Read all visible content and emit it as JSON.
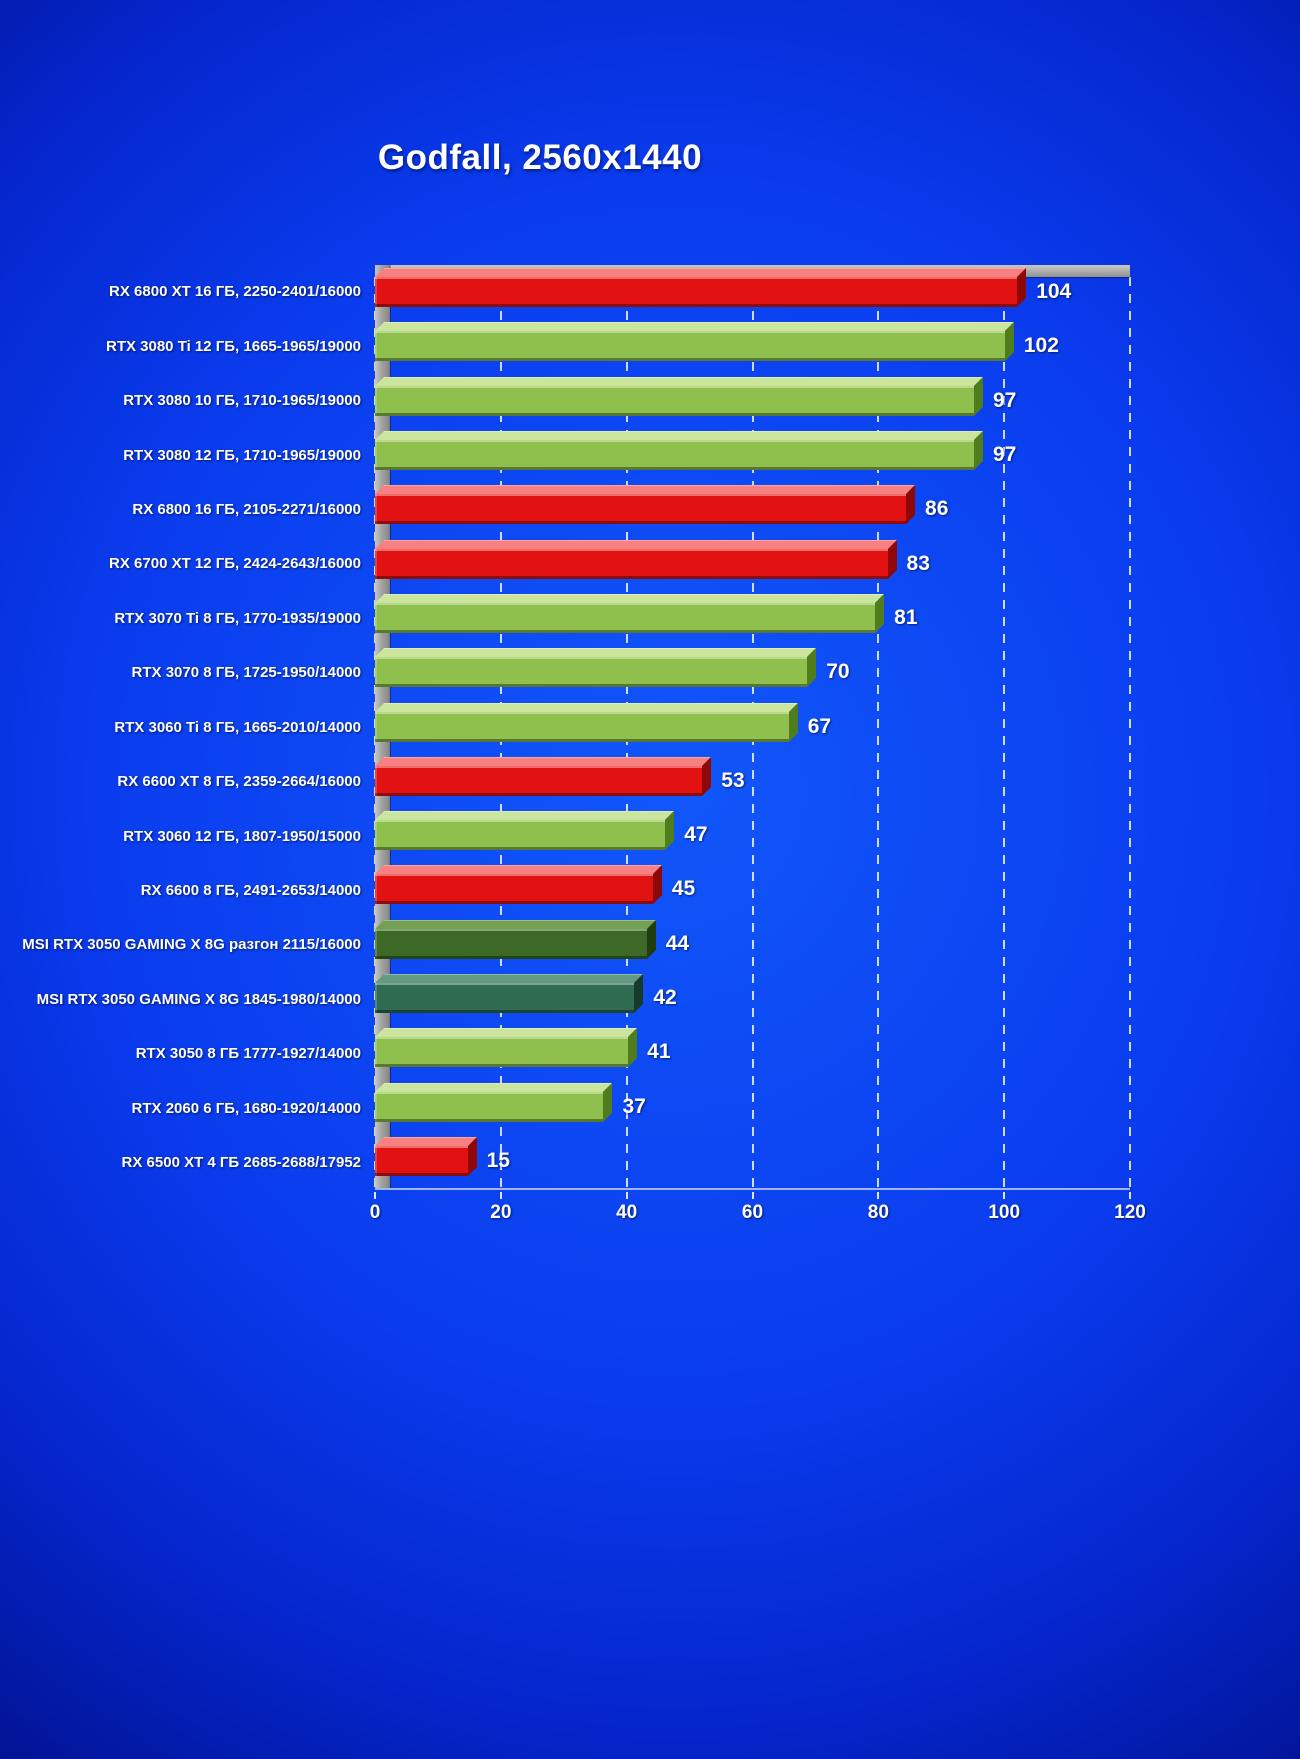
{
  "title": "Godfall, 2560x1440",
  "chart_data": {
    "type": "bar",
    "orientation": "horizontal",
    "title": "Godfall, 2560x1440",
    "xlabel": "",
    "ylabel": "",
    "xlim": [
      0,
      120
    ],
    "x_ticks": [
      0,
      20,
      40,
      60,
      80,
      100,
      120
    ],
    "grid": "vertical dashed white lines",
    "legend": "none",
    "value_labels_shown": true,
    "categories": [
      "RX 6800 XT 16 ГБ, 2250-2401/16000",
      "RTX 3080 Ti 12 ГБ, 1665-1965/19000",
      "RTX 3080 10 ГБ, 1710-1965/19000",
      "RTX 3080 12 ГБ, 1710-1965/19000",
      "RX 6800 16 ГБ, 2105-2271/16000",
      "RX 6700 XT 12 ГБ, 2424-2643/16000",
      "RTX 3070 Ti 8 ГБ, 1770-1935/19000",
      "RTX 3070 8 ГБ, 1725-1950/14000",
      "RTX 3060 Ti 8 ГБ, 1665-2010/14000",
      "RX 6600 XT 8 ГБ, 2359-2664/16000",
      "RTX 3060 12 ГБ, 1807-1950/15000",
      "RX 6600 8 ГБ, 2491-2653/14000",
      "MSI  RTX 3050 GAMING  X 8G разгон 2115/16000",
      "MSI  RTX 3050 GAMING X 8G 1845-1980/14000",
      "RTX 3050 8 ГБ 1777-1927/14000",
      "RTX 2060 6 ГБ, 1680-1920/14000",
      "RX 6500 XT 4 ГБ 2685-2688/17952"
    ],
    "values": [
      104,
      102,
      97,
      97,
      86,
      83,
      81,
      70,
      67,
      53,
      47,
      45,
      44,
      42,
      41,
      37,
      15
    ],
    "bar_color_keys": [
      "amd",
      "nvidia",
      "nvidia",
      "nvidia",
      "amd",
      "amd",
      "nvidia",
      "nvidia",
      "nvidia",
      "amd",
      "nvidia",
      "amd",
      "msi_oc",
      "msi_stock",
      "nvidia",
      "nvidia",
      "amd"
    ],
    "palette": {
      "amd": {
        "front": "#e31212",
        "top": "#f98080",
        "side": "#8d0808"
      },
      "nvidia": {
        "front": "#8fc04d",
        "top": "#cbe69c",
        "side": "#4f7d1e"
      },
      "msi_oc": {
        "front": "#3c6a26",
        "top": "#73a052",
        "side": "#1f3d10"
      },
      "msi_stock": {
        "front": "#2f6b51",
        "top": "#649a82",
        "side": "#173b2b"
      }
    },
    "background_color": "#0a3cee"
  }
}
